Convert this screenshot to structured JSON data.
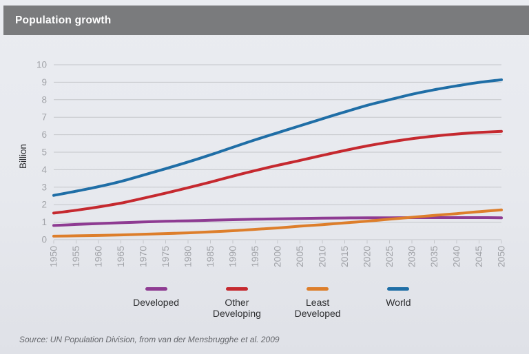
{
  "colors": {
    "header_bar": "#7a7b7d",
    "background_top": "#eaecf1",
    "background_bottom": "#dfe1e7",
    "gridline": "#c4c6ca",
    "tick_label": "#a1a3a8",
    "axis_title": "#2c2d30"
  },
  "header": {
    "title": "Population growth"
  },
  "chart_data": {
    "type": "line",
    "title": "Population growth",
    "xlabel": "",
    "ylabel": "Billion",
    "ylim": [
      0,
      10
    ],
    "y_ticks": [
      0,
      1,
      2,
      3,
      4,
      5,
      6,
      7,
      8,
      9,
      10
    ],
    "grid": true,
    "legend_position": "bottom",
    "categories": [
      "1950",
      "1955",
      "1960",
      "1965",
      "1970",
      "1975",
      "1980",
      "1985",
      "1990",
      "1995",
      "2000",
      "2005",
      "2010",
      "2015",
      "2020",
      "2025",
      "2030",
      "2035",
      "2040",
      "2045",
      "2050"
    ],
    "series": [
      {
        "name": "Developed",
        "color": "#8e3b92",
        "values": [
          0.81,
          0.87,
          0.92,
          0.97,
          1.01,
          1.05,
          1.08,
          1.11,
          1.14,
          1.17,
          1.19,
          1.21,
          1.23,
          1.24,
          1.25,
          1.25,
          1.26,
          1.26,
          1.26,
          1.26,
          1.25
        ]
      },
      {
        "name": "Other Developing",
        "color": "#c5292f",
        "values": [
          1.52,
          1.68,
          1.87,
          2.09,
          2.37,
          2.66,
          2.97,
          3.29,
          3.63,
          3.95,
          4.25,
          4.53,
          4.82,
          5.1,
          5.36,
          5.58,
          5.77,
          5.92,
          6.04,
          6.13,
          6.19
        ]
      },
      {
        "name": "Least Developed",
        "color": "#dd7e2b",
        "values": [
          0.2,
          0.22,
          0.24,
          0.27,
          0.31,
          0.35,
          0.39,
          0.45,
          0.51,
          0.59,
          0.67,
          0.77,
          0.86,
          0.96,
          1.06,
          1.17,
          1.28,
          1.39,
          1.49,
          1.6,
          1.7
        ]
      },
      {
        "name": "World",
        "color": "#1f6ea6",
        "values": [
          2.53,
          2.77,
          3.03,
          3.33,
          3.69,
          4.06,
          4.44,
          4.85,
          5.28,
          5.71,
          6.11,
          6.51,
          6.91,
          7.3,
          7.68,
          8.0,
          8.31,
          8.57,
          8.79,
          8.99,
          9.14
        ]
      }
    ]
  },
  "legend": {
    "items": [
      {
        "label": "Developed",
        "color": "#8e3b92"
      },
      {
        "label": "Other\nDeveloping",
        "color": "#c5292f"
      },
      {
        "label": "Least\nDeveloped",
        "color": "#dd7e2b"
      },
      {
        "label": "World",
        "color": "#1f6ea6"
      }
    ]
  },
  "footer": {
    "source": "Source: UN Population Division, from van der Mensbrugghe et al. 2009"
  }
}
